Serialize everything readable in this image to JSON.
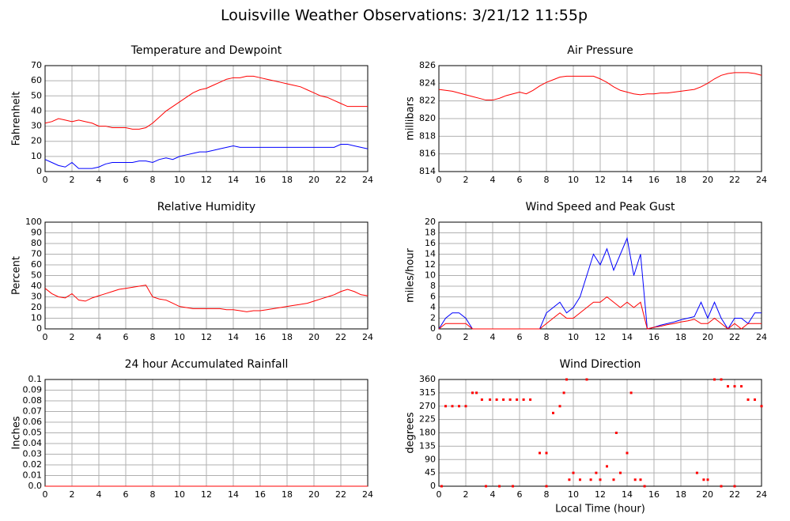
{
  "title": "Louisville Weather Observations: 3/21/12 11:55p",
  "chart_data": [
    {
      "type": "line",
      "title": "Temperature and Dewpoint",
      "ylabel": "Fahrenheit",
      "x": [
        0,
        0.5,
        1,
        1.5,
        2,
        2.5,
        3,
        3.5,
        4,
        4.5,
        5,
        5.5,
        6,
        6.5,
        7,
        7.5,
        8,
        8.5,
        9,
        9.5,
        10,
        10.5,
        11,
        11.5,
        12,
        12.5,
        13,
        13.5,
        14,
        14.5,
        15,
        15.5,
        16,
        16.5,
        17,
        17.5,
        18,
        18.5,
        19,
        19.5,
        20,
        20.5,
        21,
        21.5,
        22,
        22.5,
        23,
        23.5,
        24
      ],
      "series": [
        {
          "color": "#ff0000",
          "values": [
            32,
            33,
            35,
            34,
            33,
            34,
            33,
            32,
            30,
            30,
            29,
            29,
            29,
            28,
            28,
            29,
            32,
            36,
            40,
            43,
            46,
            49,
            52,
            54,
            55,
            57,
            59,
            61,
            62,
            62,
            63,
            63,
            62,
            61,
            60,
            59,
            58,
            57,
            56,
            54,
            52,
            50,
            49,
            47,
            45,
            43,
            43,
            43,
            43
          ]
        },
        {
          "color": "#0000ff",
          "values": [
            8,
            6,
            4,
            3,
            6,
            2,
            2,
            2,
            3,
            5,
            6,
            6,
            6,
            6,
            7,
            7,
            6,
            8,
            9,
            8,
            10,
            11,
            12,
            13,
            13,
            14,
            15,
            16,
            17,
            16,
            16,
            16,
            16,
            16,
            16,
            16,
            16,
            16,
            16,
            16,
            16,
            16,
            16,
            16,
            18,
            18,
            17,
            16,
            15
          ]
        }
      ],
      "xlim": [
        0,
        24
      ],
      "xticks": [
        0,
        2,
        4,
        6,
        8,
        10,
        12,
        14,
        16,
        18,
        20,
        22,
        24
      ],
      "ylim": [
        0,
        70
      ],
      "yticks": [
        0,
        10,
        20,
        30,
        40,
        50,
        60,
        70
      ],
      "grid": true
    },
    {
      "type": "line",
      "title": "Air Pressure",
      "ylabel": "millibars",
      "x": [
        0,
        0.5,
        1,
        1.5,
        2,
        2.5,
        3,
        3.5,
        4,
        4.5,
        5,
        5.5,
        6,
        6.5,
        7,
        7.5,
        8,
        8.5,
        9,
        9.5,
        10,
        10.5,
        11,
        11.5,
        12,
        12.5,
        13,
        13.5,
        14,
        14.5,
        15,
        15.5,
        16,
        16.5,
        17,
        17.5,
        18,
        18.5,
        19,
        19.5,
        20,
        20.5,
        21,
        21.5,
        22,
        22.5,
        23,
        23.5,
        24
      ],
      "series": [
        {
          "color": "#ff0000",
          "values": [
            823.3,
            823.2,
            823.1,
            822.9,
            822.7,
            822.5,
            822.3,
            822.1,
            822.1,
            822.3,
            822.6,
            822.8,
            823.0,
            822.8,
            823.2,
            823.7,
            824.1,
            824.4,
            824.7,
            824.8,
            824.8,
            824.8,
            824.8,
            824.8,
            824.5,
            824.1,
            823.6,
            823.2,
            823.0,
            822.8,
            822.7,
            822.8,
            822.8,
            822.9,
            822.9,
            823.0,
            823.1,
            823.2,
            823.3,
            823.6,
            824.0,
            824.5,
            824.9,
            825.1,
            825.2,
            825.2,
            825.2,
            825.1,
            824.9
          ]
        }
      ],
      "xlim": [
        0,
        24
      ],
      "xticks": [
        0,
        2,
        4,
        6,
        8,
        10,
        12,
        14,
        16,
        18,
        20,
        22,
        24
      ],
      "ylim": [
        814,
        826
      ],
      "yticks": [
        814,
        816,
        818,
        820,
        822,
        824,
        826
      ],
      "grid": true
    },
    {
      "type": "line",
      "title": "Relative Humidity",
      "ylabel": "Percent",
      "x": [
        0,
        0.5,
        1,
        1.5,
        2,
        2.5,
        3,
        3.5,
        4,
        4.5,
        5,
        5.5,
        6,
        6.5,
        7,
        7.5,
        8,
        8.5,
        9,
        9.5,
        10,
        10.5,
        11,
        11.5,
        12,
        12.5,
        13,
        13.5,
        14,
        14.5,
        15,
        15.5,
        16,
        16.5,
        17,
        17.5,
        18,
        18.5,
        19,
        19.5,
        20,
        20.5,
        21,
        21.5,
        22,
        22.5,
        23,
        23.5,
        24
      ],
      "series": [
        {
          "color": "#ff0000",
          "values": [
            38,
            33,
            30,
            29,
            33,
            27,
            26,
            29,
            31,
            33,
            35,
            37,
            38,
            39,
            40,
            41,
            30,
            28,
            27,
            24,
            21,
            20,
            19,
            19,
            19,
            19,
            19,
            18,
            18,
            17,
            16,
            17,
            17,
            18,
            19,
            20,
            21,
            22,
            23,
            24,
            26,
            28,
            30,
            32,
            35,
            37,
            35,
            32,
            31
          ]
        }
      ],
      "xlim": [
        0,
        24
      ],
      "xticks": [
        0,
        2,
        4,
        6,
        8,
        10,
        12,
        14,
        16,
        18,
        20,
        22,
        24
      ],
      "ylim": [
        0,
        100
      ],
      "yticks": [
        0,
        10,
        20,
        30,
        40,
        50,
        60,
        70,
        80,
        90,
        100
      ],
      "grid": true
    },
    {
      "type": "line",
      "title": "Wind Speed and Peak Gust",
      "ylabel": "miles/hour",
      "x": [
        0,
        0.5,
        1,
        1.5,
        2,
        2.5,
        3,
        3.5,
        4,
        4.5,
        5,
        5.5,
        6,
        6.5,
        7,
        7.5,
        8,
        8.5,
        9,
        9.5,
        10,
        10.5,
        11,
        11.5,
        12,
        12.5,
        13,
        13.5,
        14,
        14.5,
        15,
        15.5,
        16,
        16.5,
        17,
        17.5,
        18,
        18.5,
        19,
        19.5,
        20,
        20.5,
        21,
        21.5,
        22,
        22.5,
        23,
        23.5,
        24
      ],
      "series": [
        {
          "color": "#0000ff",
          "values": [
            0,
            2,
            3,
            3,
            2,
            0,
            0,
            0,
            0,
            0,
            0,
            0,
            0,
            0,
            0,
            0,
            3,
            4,
            5,
            3,
            4,
            6,
            10,
            14,
            12,
            15,
            11,
            14,
            17,
            10,
            14,
            0,
            0.3,
            0.7,
            1,
            1.3,
            1.7,
            2,
            2.3,
            5,
            2,
            5,
            2,
            0,
            2,
            2,
            1,
            3,
            3
          ]
        },
        {
          "color": "#ff0000",
          "values": [
            0,
            1,
            1,
            1,
            1,
            0,
            0,
            0,
            0,
            0,
            0,
            0,
            0,
            0,
            0,
            0,
            1,
            2,
            3,
            2,
            2,
            3,
            4,
            5,
            5,
            6,
            5,
            4,
            5,
            4,
            5,
            0,
            0.3,
            0.5,
            0.8,
            1,
            1.3,
            1.5,
            1.8,
            1,
            1,
            2,
            1,
            0,
            1,
            0,
            1,
            1,
            1
          ]
        }
      ],
      "xlim": [
        0,
        24
      ],
      "xticks": [
        0,
        2,
        4,
        6,
        8,
        10,
        12,
        14,
        16,
        18,
        20,
        22,
        24
      ],
      "ylim": [
        0,
        20
      ],
      "yticks": [
        0,
        2,
        4,
        6,
        8,
        10,
        12,
        14,
        16,
        18,
        20
      ],
      "grid": true
    },
    {
      "type": "line",
      "title": "24 hour Accumulated Rainfall",
      "ylabel": "Inches",
      "x": [
        0,
        24
      ],
      "series": [
        {
          "color": "#ff0000",
          "values": [
            0,
            0
          ]
        }
      ],
      "xlim": [
        0,
        24
      ],
      "xticks": [
        0,
        2,
        4,
        6,
        8,
        10,
        12,
        14,
        16,
        18,
        20,
        22,
        24
      ],
      "ylim": [
        0,
        0.1
      ],
      "yticks": [
        {
          "value": 0,
          "label": "0.0"
        },
        0.01,
        0.02,
        0.03,
        0.04,
        0.05,
        0.06,
        0.07,
        0.08,
        0.09,
        0.1
      ],
      "grid": true
    },
    {
      "type": "scatter",
      "title": "Wind Direction",
      "ylabel": "degrees",
      "xlabel": "Local Time (hour)",
      "x": [
        0.2,
        0.5,
        1,
        1.5,
        2,
        2.5,
        2.8,
        3.2,
        3.8,
        4.3,
        4.8,
        5.3,
        5.8,
        6.3,
        6.8,
        3.5,
        4.5,
        5.5,
        8,
        7.5,
        8,
        8.5,
        9,
        9.3,
        9.5,
        9.7,
        10,
        10.5,
        11,
        11.3,
        11.7,
        12,
        12.5,
        13,
        13.2,
        13.5,
        14,
        14.3,
        14.6,
        15,
        15.3,
        19.2,
        19.7,
        20,
        20.5,
        21,
        21.5,
        22,
        22.5,
        23,
        23.5,
        24,
        21,
        22
      ],
      "series": [
        {
          "color": "#ff0000",
          "values": [
            0,
            270,
            270,
            270,
            270,
            315,
            315,
            292,
            292,
            292,
            292,
            292,
            292,
            292,
            292,
            0,
            0,
            0,
            0,
            112,
            112,
            247,
            270,
            315,
            360,
            22,
            45,
            22,
            360,
            22,
            45,
            22,
            67,
            22,
            180,
            45,
            112,
            315,
            22,
            22,
            0,
            45,
            22,
            22,
            360,
            360,
            337,
            337,
            337,
            292,
            292,
            270,
            0,
            0
          ]
        }
      ],
      "xlim": [
        0,
        24
      ],
      "xticks": [
        0,
        2,
        4,
        6,
        8,
        10,
        12,
        14,
        16,
        18,
        20,
        22,
        24
      ],
      "ylim": [
        0,
        360
      ],
      "yticks": [
        0,
        45,
        90,
        135,
        180,
        225,
        270,
        315,
        360
      ],
      "grid": true
    }
  ]
}
